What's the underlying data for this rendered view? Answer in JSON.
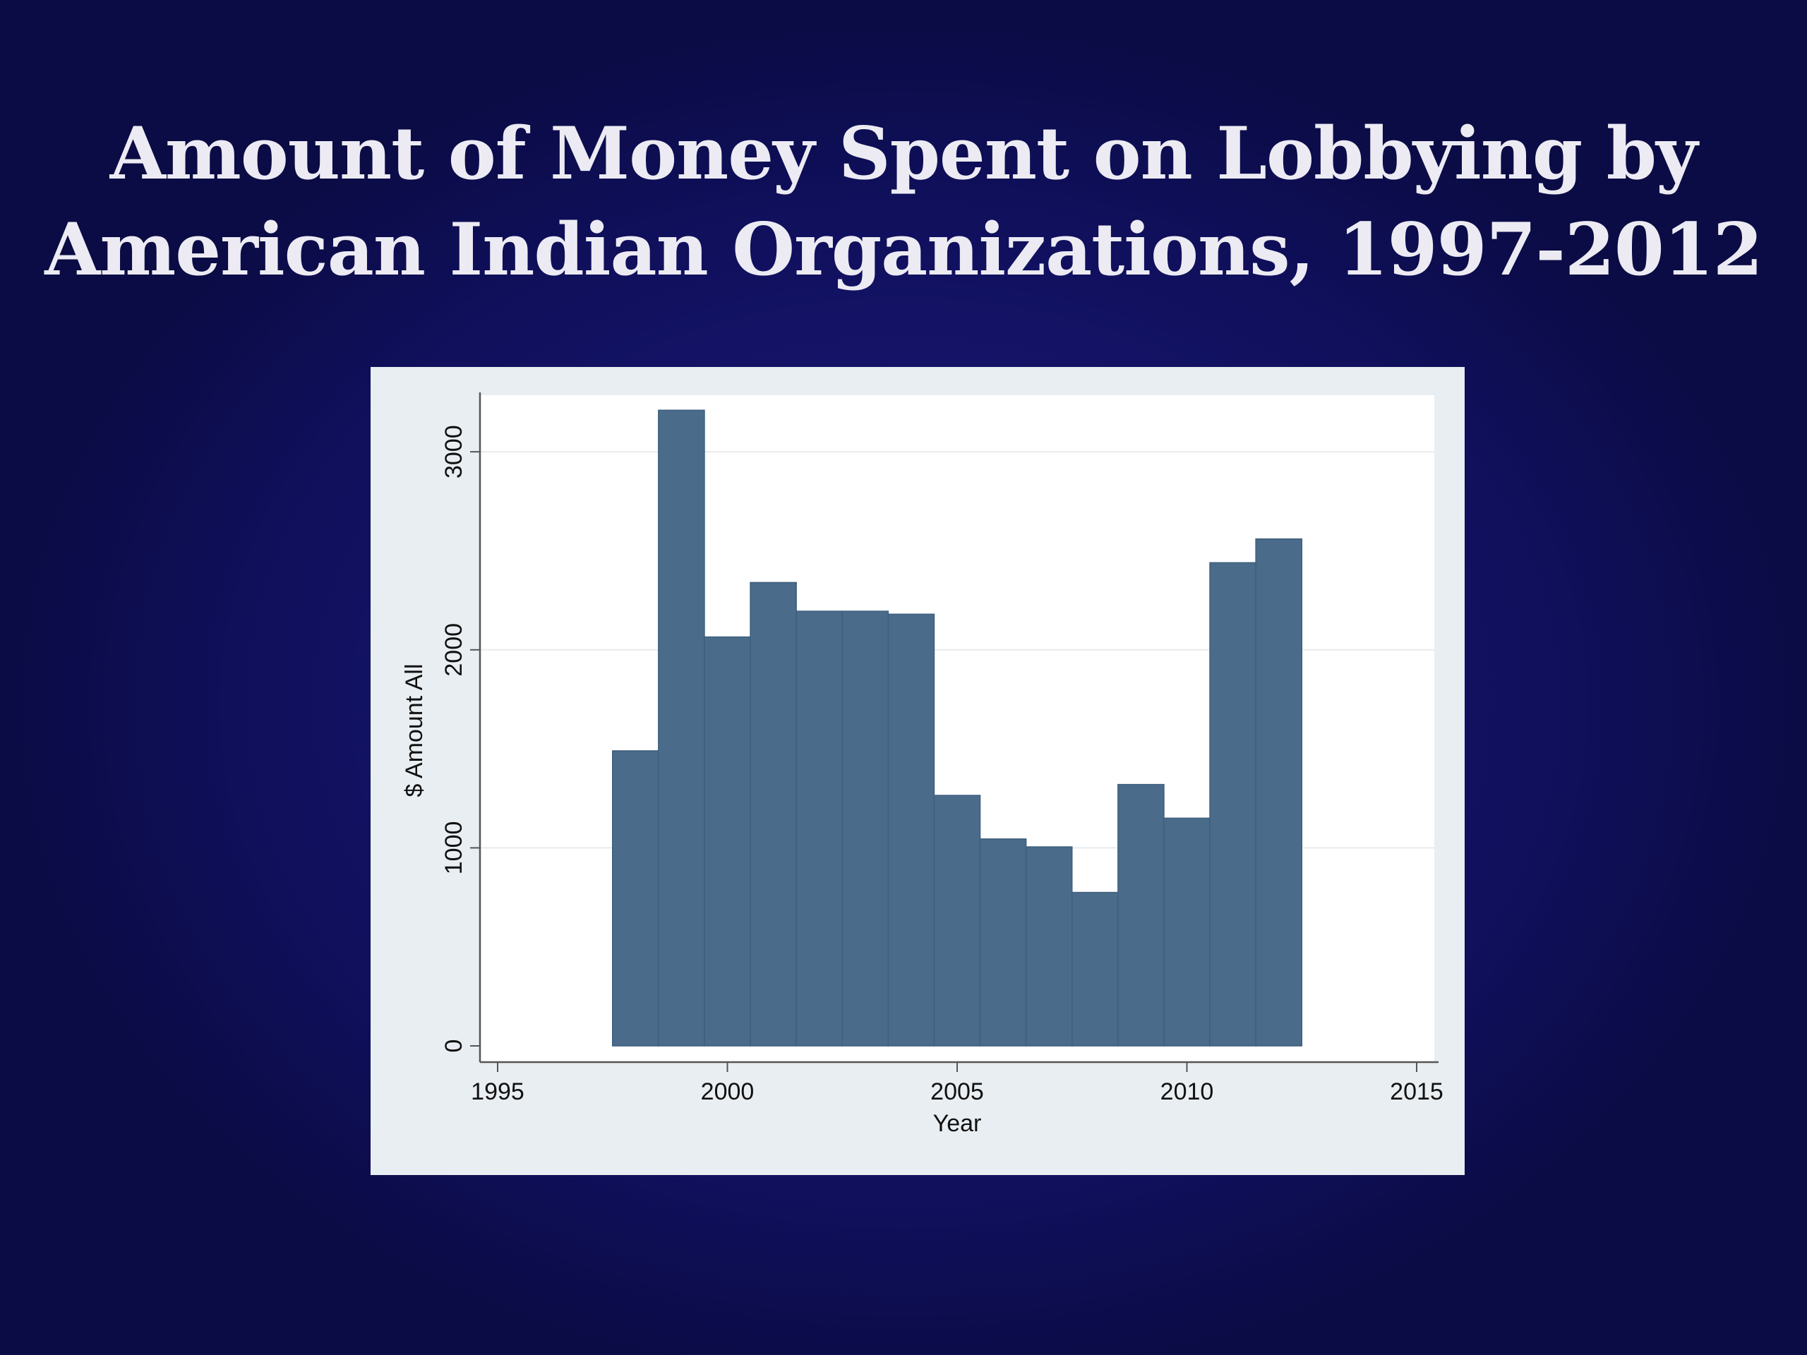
{
  "slide": {
    "title_line1": "Amount of Money Spent on Lobbying by",
    "title_line2": "American Indian Organizations, 1997-2012"
  },
  "colors": {
    "bar": "#4a6b8a",
    "bar_edge": "#3f5f7d",
    "plot_bg": "#ffffff",
    "frame_bg": "#e9eef2",
    "grid": "#e8ecef"
  },
  "chart_data": {
    "type": "bar",
    "title": "",
    "xlabel": "Year",
    "ylabel": "$ Amount All",
    "x": [
      1998,
      1999,
      2000,
      2001,
      2002,
      2003,
      2004,
      2005,
      2006,
      2007,
      2008,
      2009,
      2010,
      2011,
      2012
    ],
    "values": [
      1490,
      3210,
      2065,
      2340,
      2195,
      2195,
      2180,
      1265,
      1045,
      1005,
      775,
      1320,
      1150,
      2440,
      2560
    ],
    "xlim": [
      1995,
      2015
    ],
    "ylim": [
      0,
      3300
    ],
    "xticks": [
      "1995",
      "2000",
      "2005",
      "2010",
      "2015"
    ],
    "yticks": [
      "0",
      "1000",
      "2000",
      "3000"
    ],
    "grid": true,
    "legend": "none"
  }
}
